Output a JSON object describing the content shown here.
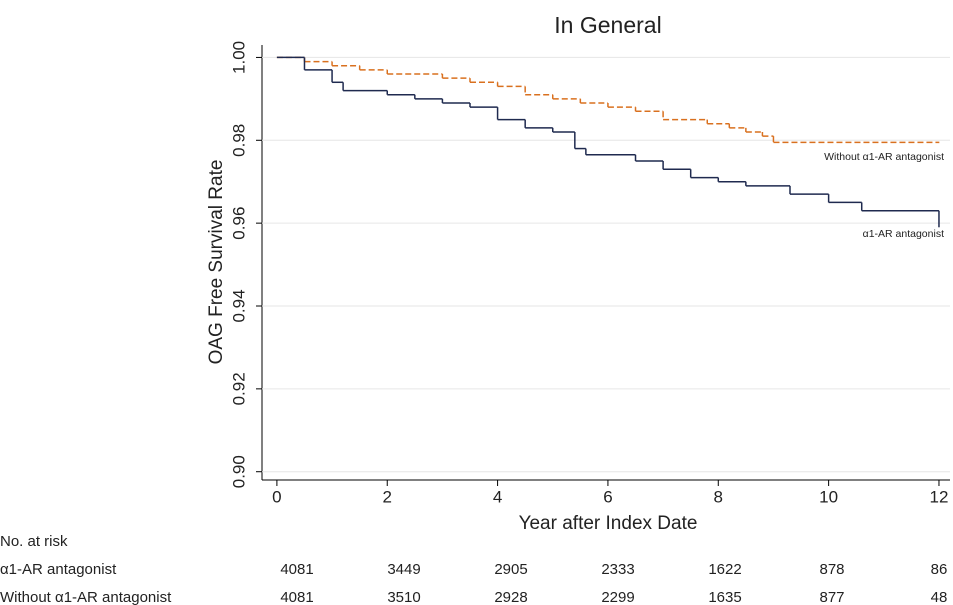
{
  "chart_data": {
    "type": "step",
    "title": "In General",
    "x_label": "Year after Index Date",
    "y_label": "OAG Free Survival Rate",
    "xlim": [
      -0.27,
      12.2
    ],
    "ylim": [
      0.898,
      1.003
    ],
    "xticks": [
      0,
      2,
      4,
      6,
      8,
      10,
      12
    ],
    "yticks": [
      {
        "value": 0.9,
        "label": "0.90"
      },
      {
        "value": 0.92,
        "label": "0.92"
      },
      {
        "value": 0.94,
        "label": "0.94"
      },
      {
        "value": 0.96,
        "label": "0.96"
      },
      {
        "value": 0.98,
        "label": "0.98"
      },
      {
        "value": 1.0,
        "label": "1.00"
      }
    ],
    "grid": true,
    "series": [
      {
        "name": "Without α1-AR antagonist",
        "color": "#d9701f",
        "dash": true,
        "x": [
          0,
          0.5,
          1,
          1.5,
          2,
          3,
          3.5,
          4,
          4.5,
          5,
          5.5,
          6,
          6.5,
          7,
          7.8,
          8.2,
          8.5,
          8.8,
          9,
          12
        ],
        "values": [
          1.0,
          0.999,
          0.998,
          0.997,
          0.996,
          0.995,
          0.994,
          0.993,
          0.991,
          0.99,
          0.989,
          0.988,
          0.987,
          0.985,
          0.984,
          0.983,
          0.982,
          0.981,
          0.9795,
          0.9795
        ]
      },
      {
        "name": "α1-AR antagonist",
        "color": "#1f2a4f",
        "dash": false,
        "x": [
          0,
          0.5,
          1,
          1.2,
          2,
          2.5,
          3,
          3.5,
          4,
          4.5,
          5,
          5.4,
          5.6,
          6.5,
          7,
          7.5,
          8,
          8.5,
          9.3,
          10,
          10.6,
          12
        ],
        "values": [
          1.0,
          0.997,
          0.994,
          0.992,
          0.991,
          0.99,
          0.989,
          0.988,
          0.985,
          0.983,
          0.982,
          0.978,
          0.9765,
          0.975,
          0.973,
          0.971,
          0.97,
          0.969,
          0.967,
          0.965,
          0.963,
          0.959
        ]
      }
    ],
    "risk_table": {
      "title": "No. at risk",
      "rows": [
        {
          "name": "α1-AR antagonist",
          "values": [
            4081,
            3449,
            2905,
            2333,
            1622,
            878,
            86
          ]
        },
        {
          "name": "Without α1-AR antagonist",
          "values": [
            4081,
            3510,
            2928,
            2299,
            1635,
            877,
            48
          ]
        }
      ]
    }
  }
}
